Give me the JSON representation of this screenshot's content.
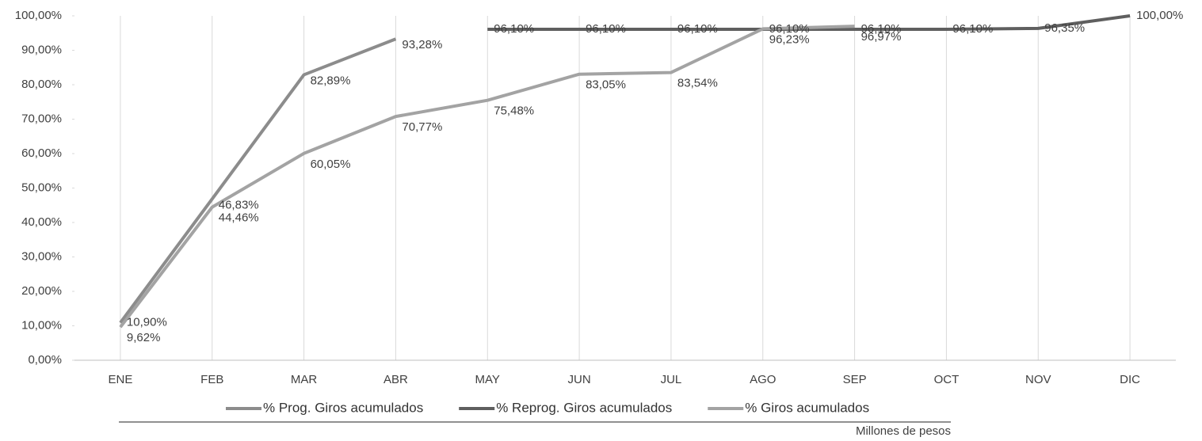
{
  "chart_data": {
    "type": "line",
    "categories": [
      "ENE",
      "FEB",
      "MAR",
      "ABR",
      "MAY",
      "JUN",
      "JUL",
      "AGO",
      "SEP",
      "OCT",
      "NOV",
      "DIC"
    ],
    "series": [
      {
        "name": "% Prog. Giros acumulados",
        "color": "#8c8c8c",
        "values": [
          10.9,
          46.83,
          82.89,
          93.28,
          null,
          null,
          null,
          null,
          null,
          null,
          null,
          null
        ],
        "value_labels": [
          "10,90%",
          "46,83%",
          "82,89%",
          "93,28%",
          null,
          null,
          null,
          null,
          null,
          null,
          null,
          null
        ]
      },
      {
        "name": "% Reprog. Giros acumulados",
        "color": "#5f5f5f",
        "values": [
          null,
          null,
          null,
          null,
          96.1,
          96.1,
          96.1,
          96.1,
          96.1,
          96.1,
          96.35,
          100
        ],
        "value_labels": [
          null,
          null,
          null,
          null,
          "96,10%",
          "96,10%",
          "96,10%",
          "96,10%",
          "96,10%",
          "96,10%",
          "96,35%",
          "100,00%"
        ]
      },
      {
        "name": "% Giros acumulados",
        "color": "#a3a3a3",
        "values": [
          9.62,
          44.46,
          60.05,
          70.77,
          75.48,
          83.05,
          83.54,
          96.23,
          96.97,
          null,
          null,
          null
        ],
        "value_labels": [
          "9,62%",
          "44,46%",
          "60,05%",
          "70,77%",
          "75,48%",
          "83,05%",
          "83,54%",
          "96,23%",
          "96,97%",
          null,
          null,
          null
        ]
      }
    ],
    "ylim": [
      0,
      100
    ],
    "yticks": [
      {
        "value": 0,
        "label": "0,00%"
      },
      {
        "value": 10,
        "label": "10,00%"
      },
      {
        "value": 20,
        "label": "20,00%"
      },
      {
        "value": 30,
        "label": "30,00%"
      },
      {
        "value": 40,
        "label": "40,00%"
      },
      {
        "value": 50,
        "label": "50,00%"
      },
      {
        "value": 60,
        "label": "60,00%"
      },
      {
        "value": 70,
        "label": "70,00%"
      },
      {
        "value": 80,
        "label": "80,00%"
      },
      {
        "value": 90,
        "label": "90,00%"
      },
      {
        "value": 100,
        "label": "100,00%"
      }
    ],
    "note": "Millones de pesos"
  }
}
